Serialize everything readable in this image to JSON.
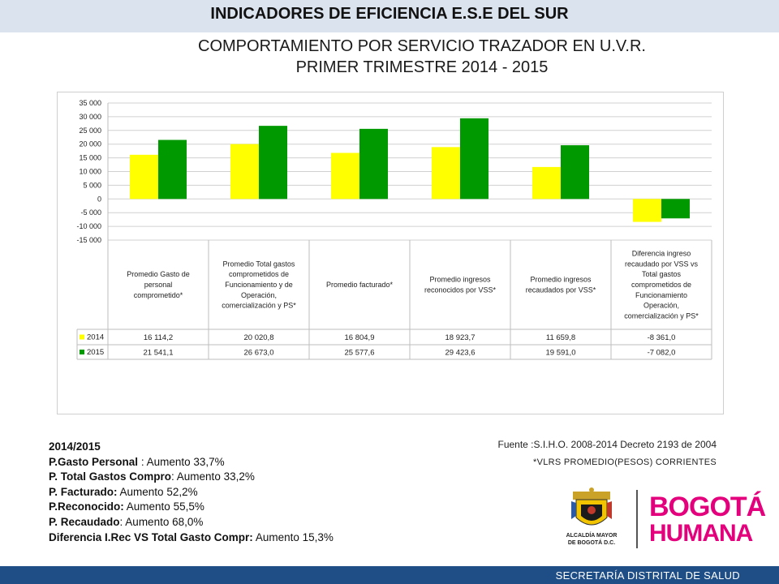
{
  "header": {
    "title": "INDICADORES DE EFICIENCIA E.S.E DEL SUR",
    "subtitle_line1": "COMPORTAMIENTO POR SERVICIO TRAZADOR EN U.V.R.",
    "subtitle_line2": "PRIMER TRIMESTRE 2014 - 2015"
  },
  "chart_data": {
    "type": "bar",
    "categories": [
      "Promedio Gasto de personal comprometido*",
      "Promedio Total gastos comprometidos de Funcionamiento y de Operación, comercialización y PS*",
      "Promedio facturado*",
      "Promedio ingresos reconocidos por VSS*",
      "Promedio ingresos recaudados por VSS*",
      "Diferencia ingreso recaudado por VSS vs Total gastos comprometidos de Funcionamiento Operación, comercialización y PS*"
    ],
    "category_lines": [
      [
        "Promedio Gasto de",
        "personal",
        "comprometido*"
      ],
      [
        "Promedio Total gastos",
        "comprometidos de",
        "Funcionamiento y de",
        "Operación,",
        "comercialización y PS*"
      ],
      [
        "Promedio facturado*"
      ],
      [
        "Promedio ingresos",
        "reconocidos por VSS*"
      ],
      [
        "Promedio ingresos",
        "recaudados por VSS*"
      ],
      [
        "Diferencia ingreso",
        "recaudado por VSS vs",
        "Total gastos",
        "comprometidos de",
        "Funcionamiento",
        "Operación,",
        "comercialización y PS*"
      ]
    ],
    "series": [
      {
        "name": "2014",
        "color": "#ffff00",
        "values": [
          16114.2,
          20020.8,
          16804.9,
          18923.7,
          11659.8,
          -8361.0
        ],
        "labels": [
          "16 114,2",
          "20 020,8",
          "16 804,9",
          "18 923,7",
          "11 659,8",
          "-8 361,0"
        ]
      },
      {
        "name": "2015",
        "color": "#009900",
        "values": [
          21541.1,
          26673.0,
          25577.6,
          29423.6,
          19591.0,
          -7082.0
        ],
        "labels": [
          "21 541,1",
          "26 673,0",
          "25 577,6",
          "29 423,6",
          "19 591,0",
          "-7 082,0"
        ]
      }
    ],
    "ylim": [
      -15000,
      35000
    ],
    "yticks": [
      35000,
      30000,
      25000,
      20000,
      15000,
      10000,
      5000,
      0,
      -5000,
      -10000,
      -15000
    ],
    "ytick_labels": [
      "35 000",
      "30 000",
      "25 000",
      "20 000",
      "15 000",
      "10 000",
      "5 000",
      "0",
      "-5 000",
      "-10 000",
      "-15 000"
    ],
    "grid": true,
    "legend": "data-table"
  },
  "notes": {
    "heading": "2014/2015",
    "items": [
      {
        "label": "P.Gasto Personal",
        "sep": " : ",
        "value": "Aumento 33,7%"
      },
      {
        "label": "P. Total Gastos Compro",
        "sep": ": ",
        "value": "Aumento 33,2%"
      },
      {
        "label": "P. Facturado:",
        "sep": " ",
        "value": "Aumento 52,2%"
      },
      {
        "label": "P.Reconocido:",
        "sep": " ",
        "value": "Aumento 55,5%"
      },
      {
        "label": "P. Recaudado",
        "sep": ":  ",
        "value": "Aumento 68,0%"
      },
      {
        "label": "Diferencia I.Rec VS Total Gasto Compr:",
        "sep": " ",
        "value": "Aumento 15,3%"
      }
    ]
  },
  "source": "Fuente :S.I.H.O. 2008-2014  Decreto 2193 de 2004",
  "values_note": "*VLRS PROMEDIO(PESOS) CORRIENTES",
  "logos": {
    "alcaldia_line1": "ALCALDÍA MAYOR",
    "alcaldia_line2": "DE BOGOTÁ D.C.",
    "bogota_line1": "BOGOTÁ",
    "bogota_line2": "HUMANA"
  },
  "footer": "SECRETARÍA DISTRITAL DE SALUD"
}
